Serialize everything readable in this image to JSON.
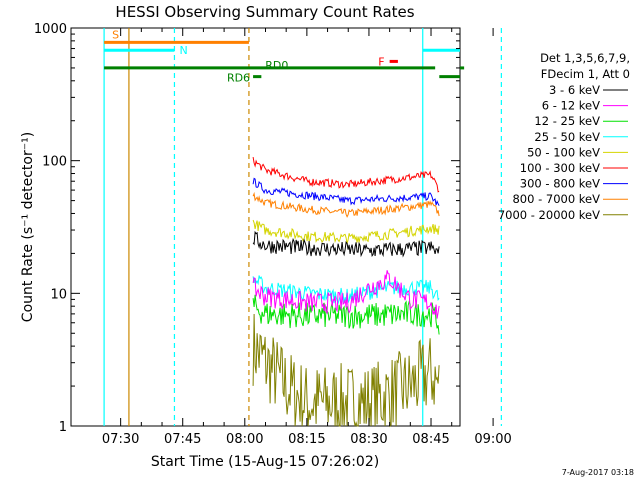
{
  "chart_data": {
    "type": "line",
    "title": "HESSI Observing Summary Count Rates",
    "xlabel": "Start Time (15-Aug-15 07:26:02)",
    "ylabel": "Count Rate (s⁻¹ detector⁻¹)",
    "yscale": "log",
    "ylim": [
      1,
      1000
    ],
    "xlim_minutes_after_start": [
      -8.03,
      85.97
    ],
    "x_ticks": [
      "07:30",
      "07:45",
      "08:00",
      "08:15",
      "08:30",
      "08:45",
      "09:00"
    ],
    "y_ticks": [
      "1",
      "10",
      "100",
      "1000"
    ],
    "footer_date": "7-Aug-2017 03:18",
    "legend_header": [
      "Det 1,3,5,6,7,9,",
      "FDecim 1, Att 0"
    ],
    "series": [
      {
        "name": "3 - 6 keV",
        "color": "#000000",
        "x": [
          "08:02",
          "08:05",
          "08:15",
          "08:30",
          "08:45",
          "08:47"
        ],
        "values": [
          26,
          23,
          22,
          21,
          22,
          20
        ],
        "noise": 0.06
      },
      {
        "name": "6 - 12 keV",
        "color": "#ff00ff",
        "x": [
          "08:02",
          "08:05",
          "08:15",
          "08:25",
          "08:30",
          "08:35",
          "08:40",
          "08:45",
          "08:47"
        ],
        "values": [
          11,
          9.5,
          8.5,
          8.5,
          11,
          13,
          9,
          8.5,
          7
        ],
        "noise": 0.08
      },
      {
        "name": "12 - 25 keV",
        "color": "#00e000",
        "x": [
          "08:02",
          "08:05",
          "08:15",
          "08:30",
          "08:40",
          "08:45",
          "08:47"
        ],
        "values": [
          8,
          7,
          6.8,
          6.8,
          7,
          7,
          6
        ],
        "noise": 0.1
      },
      {
        "name": "25 - 50 keV",
        "color": "#00ffff",
        "x": [
          "08:02",
          "08:05",
          "08:15",
          "08:25",
          "08:35",
          "08:45",
          "08:47"
        ],
        "values": [
          13,
          11,
          10,
          9.5,
          11,
          11,
          9
        ],
        "noise": 0.06
      },
      {
        "name": "50 - 100 keV",
        "color": "#d4d400",
        "x": [
          "08:02",
          "08:05",
          "08:15",
          "08:25",
          "08:35",
          "08:45",
          "08:47"
        ],
        "values": [
          34,
          30,
          27,
          26,
          28,
          31,
          30
        ],
        "noise": 0.04
      },
      {
        "name": "100 - 300 keV",
        "color": "#ff0000",
        "x": [
          "08:02",
          "08:05",
          "08:15",
          "08:25",
          "08:35",
          "08:45",
          "08:47"
        ],
        "values": [
          100,
          85,
          70,
          66,
          72,
          78,
          60
        ],
        "noise": 0.03
      },
      {
        "name": "300 - 800 keV",
        "color": "#0000ff",
        "x": [
          "08:02",
          "08:05",
          "08:15",
          "08:25",
          "08:35",
          "08:45",
          "08:47"
        ],
        "values": [
          70,
          60,
          55,
          50,
          52,
          54,
          45
        ],
        "noise": 0.03
      },
      {
        "name": "800 - 7000 keV",
        "color": "#ff8000",
        "x": [
          "08:02",
          "08:05",
          "08:15",
          "08:25",
          "08:35",
          "08:45",
          "08:47"
        ],
        "values": [
          55,
          48,
          43,
          40,
          43,
          47,
          40
        ],
        "noise": 0.03
      },
      {
        "name": "7000 - 20000 keV",
        "color": "#808000",
        "x": [
          "08:02",
          "08:05",
          "08:10",
          "08:15",
          "08:30",
          "08:40",
          "08:45",
          "08:47"
        ],
        "values": [
          4,
          3,
          2,
          1.5,
          1.5,
          2,
          2.5,
          2
        ],
        "noise": 0.3
      }
    ],
    "flags": [
      {
        "label": "S",
        "color": "#ff8000",
        "x_start": "07:26",
        "x_end": "08:01",
        "value": 780
      },
      {
        "label": "N",
        "color": "#00ffff",
        "x_start": "07:26",
        "x_end": "07:43",
        "value": 680
      },
      {
        "label": "N",
        "color": "#00ffff",
        "x_start": "08:43",
        "x_end": "09:02",
        "value": 680
      },
      {
        "label": "RD0",
        "color": "#008000",
        "x_start": "07:26",
        "x_end": "08:46",
        "value": 500
      },
      {
        "label": "RD0",
        "color": "#008000",
        "x_start": "08:53",
        "x_end": "09:02",
        "value": 500
      },
      {
        "label": "RD6",
        "color": "#008000",
        "x_start": "08:02",
        "x_end": "08:04",
        "value": 430
      },
      {
        "label": "RD6",
        "color": "#008000",
        "x_start": "08:47",
        "x_end": "08:52",
        "value": 430
      },
      {
        "label": "F",
        "color": "#ff0000",
        "x_start": "08:35",
        "x_end": "08:37",
        "value": 560
      }
    ],
    "vertical_lines": [
      {
        "x": "07:26",
        "color": "#00ffff",
        "style": "solid"
      },
      {
        "x": "07:32",
        "color": "#cc8800",
        "style": "solid"
      },
      {
        "x": "07:43",
        "color": "#00ffff",
        "style": "dashed"
      },
      {
        "x": "08:01",
        "color": "#cc8800",
        "style": "dashed"
      },
      {
        "x": "08:43",
        "color": "#00ffff",
        "style": "solid"
      },
      {
        "x": "09:02",
        "color": "#00ffff",
        "style": "dashed"
      }
    ]
  }
}
